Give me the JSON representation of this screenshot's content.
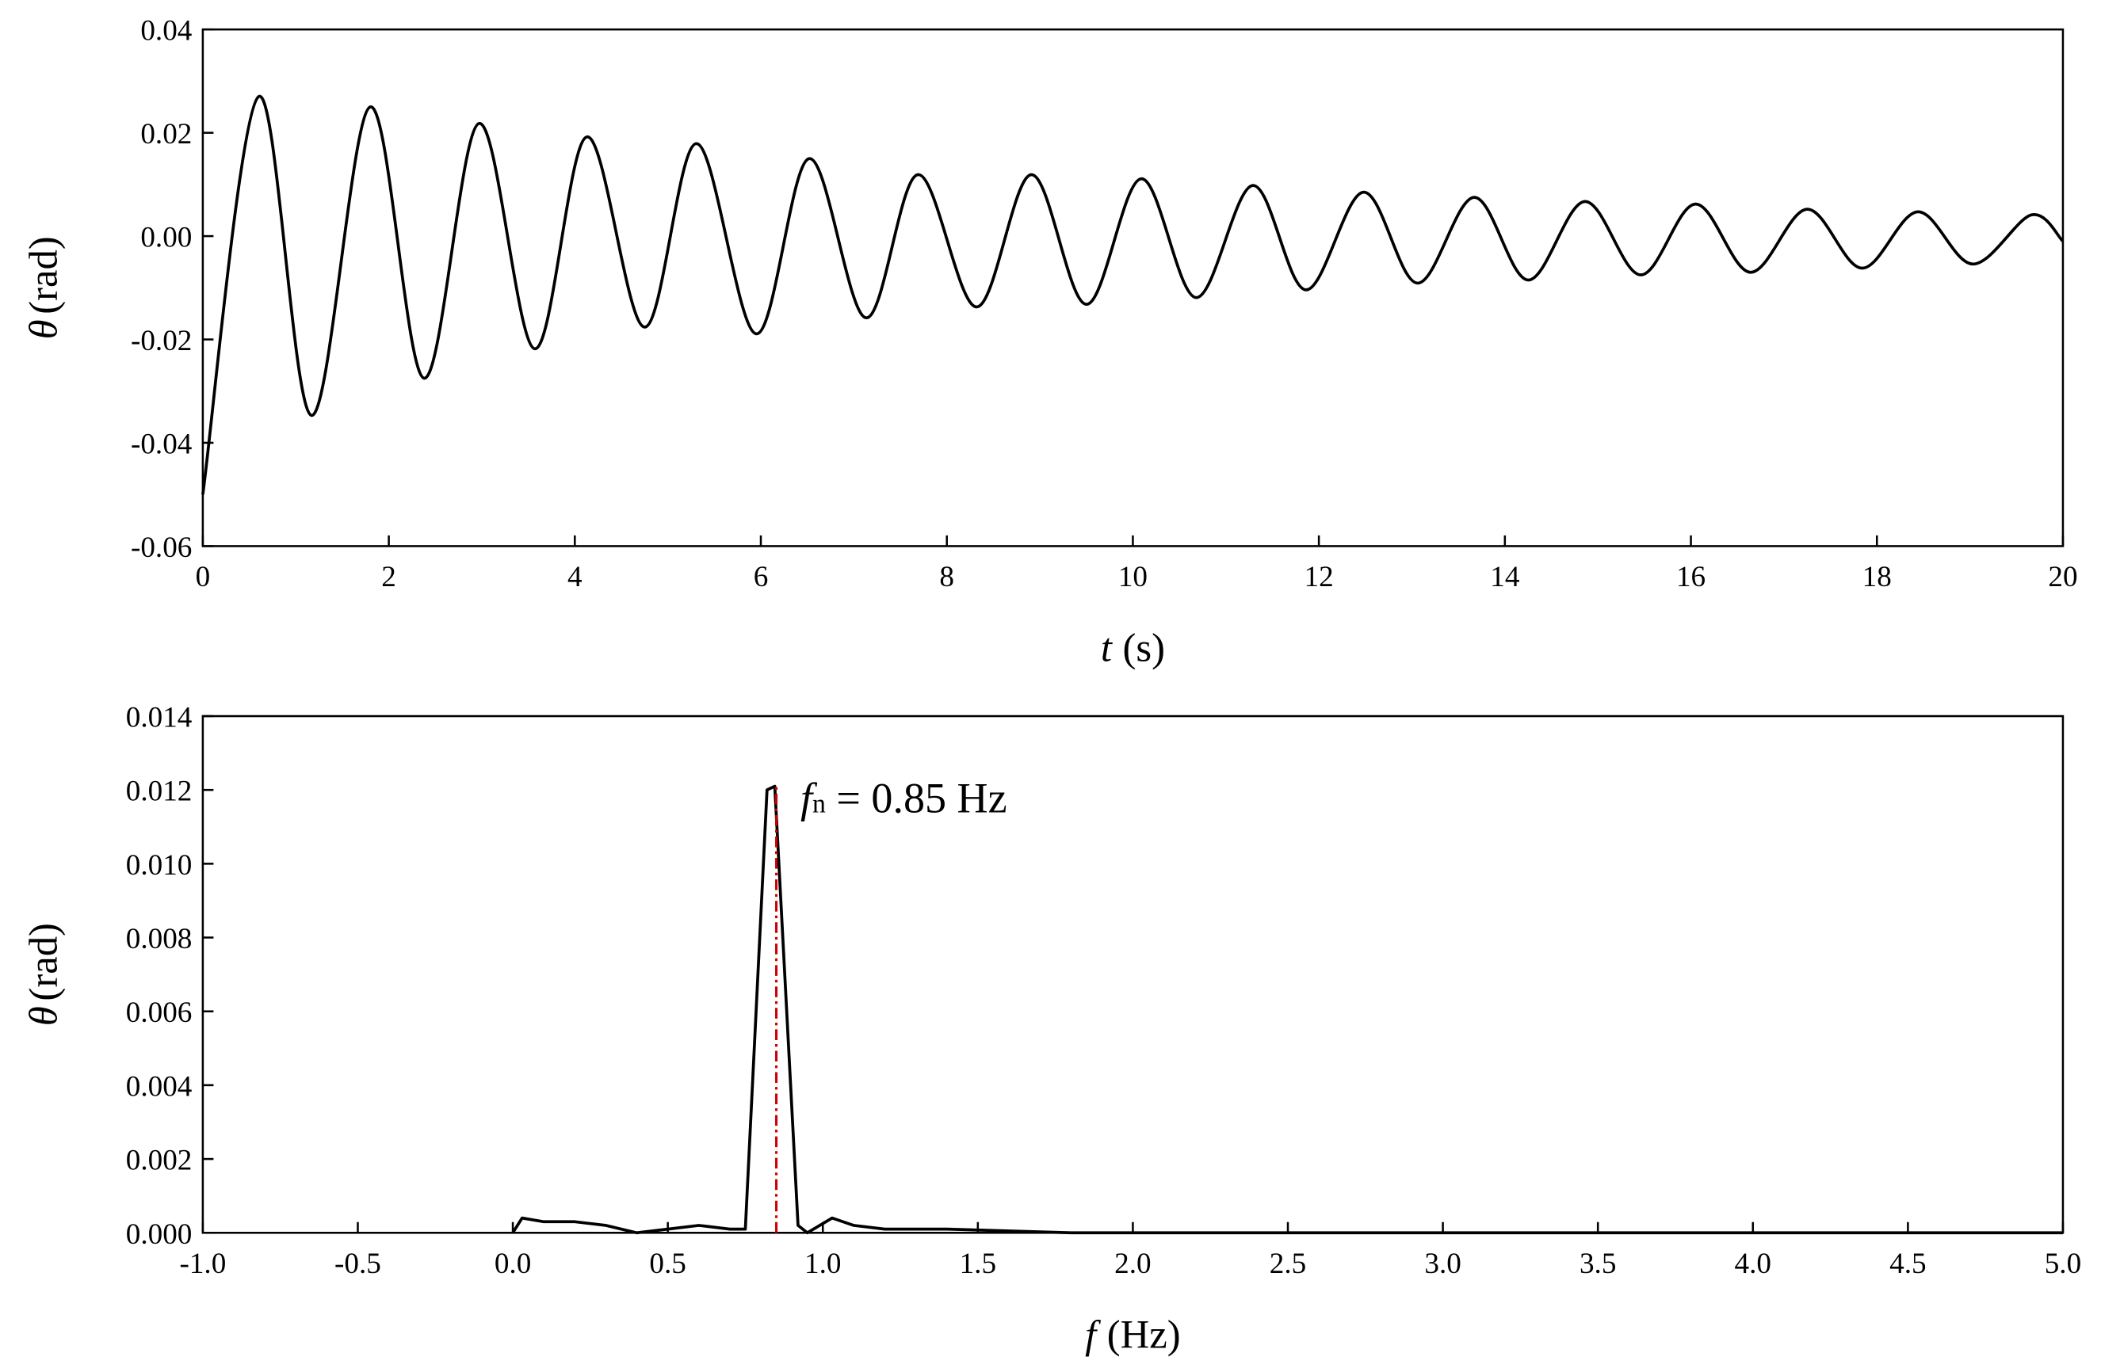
{
  "chart_data": [
    {
      "type": "line",
      "smooth": true,
      "xlabel_symbol": "t",
      "xlabel_unit": "(s)",
      "ylabel_symbol": "θ",
      "ylabel_unit": "(rad)",
      "xlim": [
        0,
        20
      ],
      "xticks": [
        0,
        2,
        4,
        6,
        8,
        10,
        12,
        14,
        16,
        18,
        20
      ],
      "ylim": [
        -0.06,
        0.04
      ],
      "yticks": [
        -0.06,
        -0.04,
        -0.02,
        {
          "value": 0,
          "label": "0.00"
        },
        0.02,
        0.04
      ],
      "x": [
        0,
        0.6,
        1.17,
        1.8,
        2.38,
        2.97,
        3.57,
        4.13,
        4.75,
        5.31,
        5.95,
        6.52,
        7.13,
        7.69,
        8.32,
        8.91,
        9.5,
        10.09,
        10.68,
        11.29,
        11.86,
        12.48,
        13.06,
        13.67,
        14.25,
        14.86,
        15.46,
        16.05,
        16.64,
        17.25,
        17.84,
        18.44,
        19.03,
        19.66,
        20
      ],
      "series": [
        {
          "color": "#000000",
          "values": [
            -0.05,
            0.027,
            -0.0347,
            0.025,
            -0.0275,
            0.0218,
            -0.0218,
            0.0192,
            -0.0176,
            0.0179,
            -0.0189,
            0.015,
            -0.0158,
            0.0119,
            -0.0137,
            0.0119,
            -0.0132,
            0.0111,
            -0.0119,
            0.0098,
            -0.0104,
            0.0085,
            -0.0091,
            0.0075,
            -0.0085,
            0.0067,
            -0.0075,
            0.0062,
            -0.007,
            0.0052,
            -0.0062,
            0.0047,
            -0.0054,
            0.0041,
            -0.001
          ]
        }
      ]
    },
    {
      "type": "line",
      "smooth": false,
      "xlabel_symbol": "f",
      "xlabel_unit": "(Hz)",
      "ylabel_symbol": "θ",
      "ylabel_unit": "(rad)",
      "xlim": [
        -1,
        5
      ],
      "xticks": [
        {
          "value": -1,
          "label": "-1.0"
        },
        -0.5,
        {
          "value": 0,
          "label": "0.0"
        },
        0.5,
        {
          "value": 1,
          "label": "1.0"
        },
        1.5,
        {
          "value": 2,
          "label": "2.0"
        },
        2.5,
        {
          "value": 3,
          "label": "3.0"
        },
        3.5,
        {
          "value": 4,
          "label": "4.0"
        },
        4.5,
        {
          "value": 5,
          "label": "5.0"
        }
      ],
      "ylim": [
        0,
        0.014
      ],
      "yticks": [
        {
          "value": 0,
          "label": "0.000"
        },
        0.002,
        0.004,
        0.006,
        0.008,
        {
          "value": 0.01,
          "label": "0.010"
        },
        0.012,
        0.014
      ],
      "x": [
        0,
        0.03,
        0.1,
        0.2,
        0.3,
        0.4,
        0.5,
        0.6,
        0.7,
        0.75,
        0.82,
        0.845,
        0.92,
        0.95,
        1.03,
        1.1,
        1.2,
        1.4,
        1.8,
        5
      ],
      "series": [
        {
          "color": "#000000",
          "values": [
            0,
            0.0004,
            0.0003,
            0.0003,
            0.0002,
            0,
            0.0001,
            0.0002,
            0.0001,
            0.0001,
            0.012,
            0.0121,
            0.0002,
            0,
            0.0004,
            0.0002,
            0.0001,
            0.0001,
            0,
            0
          ]
        }
      ],
      "vline": 0.85,
      "vline_color": "#cc0000",
      "annotation_symbol": "f",
      "annotation_subscript": "n",
      "annotation_text": "= 0.85 Hz"
    }
  ]
}
